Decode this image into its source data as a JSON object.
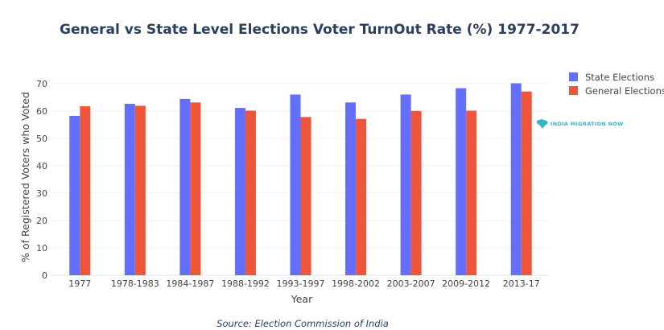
{
  "chart_data": {
    "type": "bar",
    "title": "General vs State Level Elections Voter TurnOut Rate (%) 1977-2017",
    "xlabel": "Year",
    "ylabel": "% of Registered Voters who Voted",
    "categories": [
      "1977",
      "1978-1983",
      "1984-1987",
      "1988-1992",
      "1993-1997",
      "1998-2002",
      "2003-2007",
      "2009-2012",
      "2013-17"
    ],
    "series": [
      {
        "name": "State Elections",
        "color": "#636efa",
        "values": [
          58.2,
          62.6,
          64.4,
          61.1,
          66.0,
          63.1,
          66.0,
          68.3,
          70.1
        ]
      },
      {
        "name": "General Elections",
        "color": "#ef553b",
        "values": [
          61.7,
          61.9,
          63.1,
          60.1,
          57.8,
          57.1,
          60.0,
          60.1,
          67.1
        ]
      }
    ],
    "ylim": [
      0,
      72
    ],
    "yticks": [
      0,
      10,
      20,
      30,
      40,
      50,
      60,
      70
    ],
    "grid": true,
    "legend_position": "top-right",
    "source_note": "Source: Election Commission of India",
    "watermark": "INDIA MIGRATION NOW",
    "watermark_icon": "india-map-icon"
  }
}
